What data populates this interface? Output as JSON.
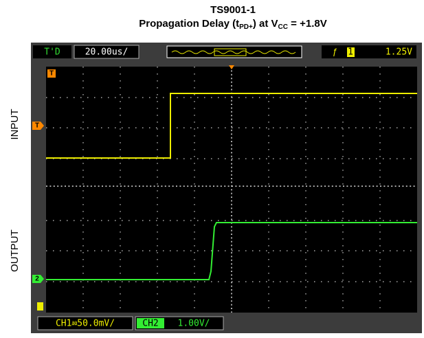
{
  "header": {
    "title": "TS9001-1",
    "subtitle_parts": [
      "Propagation Delay (t",
      "PD+",
      ") at V",
      "CC",
      " = +1.8V"
    ]
  },
  "scope": {
    "mode": "T'D",
    "timebase": "20.00us/",
    "trigger_channel": "1",
    "trigger_level": "1.25V",
    "ch1_scale": "CH1⎂50.0mV/",
    "ch2_label": "CH2",
    "ch2_scale": " 1.00V/",
    "trigger_marker": "T",
    "ch1_marker": "T",
    "ch2_marker": "2"
  },
  "labels": {
    "input": "INPUT",
    "output": "OUTPUT"
  }
}
